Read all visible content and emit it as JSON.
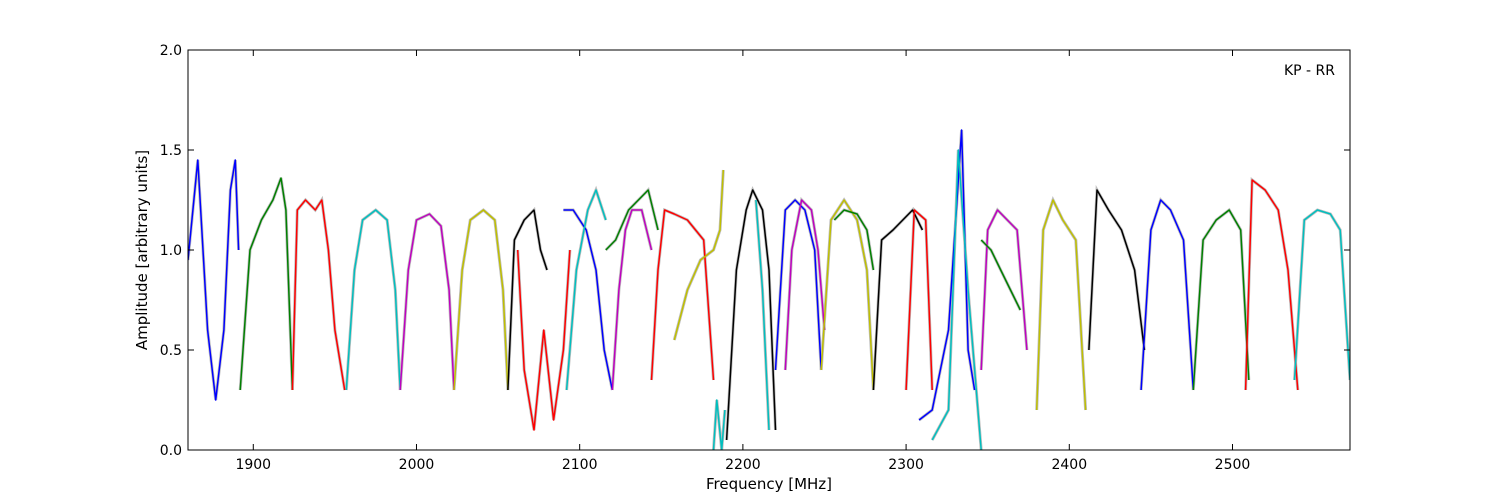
{
  "chart_data": {
    "type": "line",
    "title": "",
    "annotation": "KP - RR",
    "xlabel": "Frequency [MHz]",
    "ylabel": "Amplitude [arbitrary units]",
    "xlim": [
      1860,
      2572
    ],
    "ylim": [
      0.0,
      2.0
    ],
    "xticks": [
      1900,
      2000,
      2100,
      2200,
      2300,
      2400,
      2500
    ],
    "xtick_labels": [
      "1900",
      "2000",
      "2100",
      "2200",
      "2300",
      "2400",
      "2500"
    ],
    "yticks": [
      0.0,
      0.5,
      1.0,
      1.5,
      2.0
    ],
    "ytick_labels": [
      "0.0",
      "0.5",
      "1.0",
      "1.5",
      "2.0"
    ],
    "grid": false,
    "background_series_color": "#bfbfbf",
    "series": [
      {
        "color": "#0000ff",
        "x": [
          1860,
          1866,
          1872,
          1877,
          1882,
          1886,
          1889,
          1891
        ],
        "y": [
          0.95,
          1.45,
          0.6,
          0.25,
          0.6,
          1.3,
          1.45,
          1.0
        ]
      },
      {
        "color": "#008000",
        "x": [
          1892,
          1898,
          1905,
          1912,
          1917,
          1920,
          1924
        ],
        "y": [
          0.3,
          1.0,
          1.15,
          1.25,
          1.36,
          1.2,
          0.3
        ]
      },
      {
        "color": "#ff0000",
        "x": [
          1924,
          1927,
          1932,
          1938,
          1942,
          1946,
          1950,
          1956
        ],
        "y": [
          0.3,
          1.2,
          1.25,
          1.2,
          1.25,
          1.0,
          0.6,
          0.3
        ]
      },
      {
        "color": "#00bfbf",
        "x": [
          1957,
          1962,
          1967,
          1975,
          1982,
          1987,
          1990
        ],
        "y": [
          0.3,
          0.9,
          1.15,
          1.2,
          1.15,
          0.8,
          0.3
        ]
      },
      {
        "color": "#bf00bf",
        "x": [
          1990,
          1995,
          2000,
          2008,
          2015,
          2020,
          2023
        ],
        "y": [
          0.3,
          0.9,
          1.15,
          1.18,
          1.12,
          0.8,
          0.3
        ]
      },
      {
        "color": "#bfbf00",
        "x": [
          2023,
          2028,
          2033,
          2041,
          2048,
          2053,
          2056
        ],
        "y": [
          0.3,
          0.9,
          1.15,
          1.2,
          1.15,
          0.8,
          0.3
        ]
      },
      {
        "color": "#000000",
        "x": [
          2056,
          2060,
          2066,
          2072,
          2076,
          2080
        ],
        "y": [
          0.3,
          1.05,
          1.15,
          1.2,
          1.0,
          0.9
        ]
      },
      {
        "color": "#ff0000",
        "x": [
          2062,
          2066,
          2072,
          2078,
          2084,
          2090,
          2094
        ],
        "y": [
          1.0,
          0.4,
          0.1,
          0.6,
          0.15,
          0.5,
          1.0
        ]
      },
      {
        "color": "#0000ff",
        "x": [
          2090,
          2096,
          2104,
          2110,
          2115,
          2120
        ],
        "y": [
          1.2,
          1.2,
          1.1,
          0.9,
          0.5,
          0.3
        ]
      },
      {
        "color": "#00bfbf",
        "x": [
          2092,
          2098,
          2105,
          2110,
          2116
        ],
        "y": [
          0.3,
          0.9,
          1.2,
          1.3,
          1.15
        ]
      },
      {
        "color": "#008000",
        "x": [
          2116,
          2122,
          2130,
          2136,
          2142,
          2148
        ],
        "y": [
          1.0,
          1.05,
          1.2,
          1.25,
          1.3,
          1.1
        ]
      },
      {
        "color": "#bf00bf",
        "x": [
          2120,
          2124,
          2128,
          2132,
          2138,
          2144
        ],
        "y": [
          0.3,
          0.8,
          1.1,
          1.2,
          1.2,
          1.0
        ]
      },
      {
        "color": "#ff0000",
        "x": [
          2144,
          2148,
          2152,
          2158,
          2166,
          2176,
          2182
        ],
        "y": [
          0.35,
          0.9,
          1.2,
          1.18,
          1.15,
          1.05,
          0.35
        ]
      },
      {
        "color": "#bfbf00",
        "x": [
          2158,
          2166,
          2174,
          2182,
          2186,
          2188
        ],
        "y": [
          0.55,
          0.8,
          0.95,
          1.0,
          1.1,
          1.4
        ]
      },
      {
        "color": "#00bfbf",
        "x": [
          2182,
          2184,
          2187,
          2189
        ],
        "y": [
          0.0,
          0.25,
          0.0,
          0.2
        ]
      },
      {
        "color": "#000000",
        "x": [
          2190,
          2196,
          2202,
          2206,
          2212,
          2216,
          2220
        ],
        "y": [
          0.05,
          0.9,
          1.2,
          1.3,
          1.2,
          0.9,
          0.1
        ]
      },
      {
        "color": "#00bfbf",
        "x": [
          2208,
          2212,
          2216
        ],
        "y": [
          1.25,
          0.8,
          0.1
        ]
      },
      {
        "color": "#0000ff",
        "x": [
          2220,
          2226,
          2232,
          2238,
          2244,
          2248
        ],
        "y": [
          0.4,
          1.2,
          1.25,
          1.2,
          1.0,
          0.4
        ]
      },
      {
        "color": "#bf00bf",
        "x": [
          2226,
          2230,
          2236,
          2242,
          2246,
          2250
        ],
        "y": [
          0.4,
          1.0,
          1.25,
          1.2,
          1.0,
          0.6
        ]
      },
      {
        "color": "#bfbf00",
        "x": [
          2248,
          2254,
          2262,
          2270,
          2276,
          2280
        ],
        "y": [
          0.4,
          1.15,
          1.25,
          1.15,
          0.9,
          0.3
        ]
      },
      {
        "color": "#008000",
        "x": [
          2256,
          2262,
          2270,
          2276,
          2280
        ],
        "y": [
          1.15,
          1.2,
          1.18,
          1.1,
          0.9
        ]
      },
      {
        "color": "#000000",
        "x": [
          2280,
          2285,
          2292,
          2298,
          2304,
          2310
        ],
        "y": [
          0.3,
          1.05,
          1.1,
          1.15,
          1.2,
          1.1
        ]
      },
      {
        "color": "#ff0000",
        "x": [
          2300,
          2305,
          2312,
          2316
        ],
        "y": [
          0.3,
          1.2,
          1.15,
          0.3
        ]
      },
      {
        "color": "#0000ff",
        "x": [
          2308,
          2316,
          2326,
          2334,
          2338,
          2342
        ],
        "y": [
          0.15,
          0.2,
          0.6,
          1.6,
          0.5,
          0.3
        ]
      },
      {
        "color": "#00bfbf",
        "x": [
          2316,
          2326,
          2332,
          2338,
          2346
        ],
        "y": [
          0.05,
          0.2,
          1.5,
          0.8,
          0.0
        ]
      },
      {
        "color": "#bf00bf",
        "x": [
          2346,
          2350,
          2356,
          2362,
          2368,
          2374
        ],
        "y": [
          0.4,
          1.1,
          1.2,
          1.15,
          1.1,
          0.5
        ]
      },
      {
        "color": "#008000",
        "x": [
          2346,
          2352,
          2358,
          2364,
          2370
        ],
        "y": [
          1.05,
          1.0,
          0.9,
          0.8,
          0.7
        ]
      },
      {
        "color": "#bfbf00",
        "x": [
          2380,
          2384,
          2390,
          2396,
          2404,
          2410
        ],
        "y": [
          0.2,
          1.1,
          1.25,
          1.15,
          1.05,
          0.2
        ]
      },
      {
        "color": "#000000",
        "x": [
          2412,
          2417,
          2424,
          2432,
          2440,
          2446
        ],
        "y": [
          0.5,
          1.3,
          1.2,
          1.1,
          0.9,
          0.5
        ]
      },
      {
        "color": "#0000ff",
        "x": [
          2444,
          2450,
          2456,
          2462,
          2470,
          2476
        ],
        "y": [
          0.3,
          1.1,
          1.25,
          1.2,
          1.05,
          0.3
        ]
      },
      {
        "color": "#008000",
        "x": [
          2476,
          2482,
          2490,
          2498,
          2505,
          2510
        ],
        "y": [
          0.3,
          1.05,
          1.15,
          1.2,
          1.1,
          0.35
        ]
      },
      {
        "color": "#ff0000",
        "x": [
          2508,
          2512,
          2520,
          2528,
          2534,
          2540
        ],
        "y": [
          0.3,
          1.35,
          1.3,
          1.2,
          0.9,
          0.3
        ]
      },
      {
        "color": "#00bfbf",
        "x": [
          2538,
          2544,
          2552,
          2560,
          2566,
          2572
        ],
        "y": [
          0.35,
          1.15,
          1.2,
          1.18,
          1.1,
          0.35
        ]
      }
    ]
  }
}
